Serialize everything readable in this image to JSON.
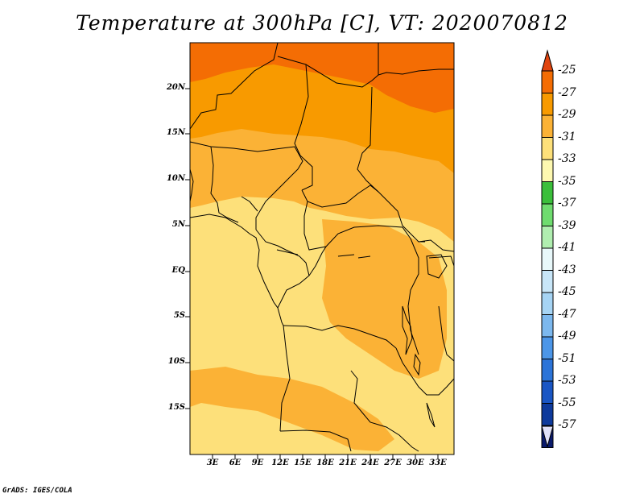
{
  "title": "Temperature at 300hPa [C], VT: 2020070812",
  "credit": "GrADS: IGES/COLA",
  "lat_labels": [
    "20N",
    "15N",
    "10N",
    "5N",
    "EQ",
    "5S",
    "10S",
    "15S"
  ],
  "lon_labels": [
    "3E",
    "6E",
    "9E",
    "12E",
    "15E",
    "18E",
    "21E",
    "24E",
    "27E",
    "30E",
    "33E"
  ],
  "colorbar": {
    "labels": [
      "-25",
      "-27",
      "-29",
      "-31",
      "-33",
      "-35",
      "-37",
      "-39",
      "-41",
      "-43",
      "-45",
      "-47",
      "-49",
      "-51",
      "-53",
      "-55",
      "-57"
    ],
    "colors": [
      "#e0440e",
      "#f46d04",
      "#f89a00",
      "#fbb236",
      "#fde07a",
      "#fdf8b0",
      "#3bbf3b",
      "#6fdc6f",
      "#b0eeb0",
      "#e8f8fa",
      "#c8e6f8",
      "#a6d4f4",
      "#7cb8ee",
      "#4c96e8",
      "#2c74d8",
      "#1a56c4",
      "#0e3a9c",
      "#0a1a6c",
      "#e0e0f8"
    ]
  },
  "legend_mapping": {
    "orange_red": "-25 to -27",
    "orange": "-27 to -29",
    "light_orange": "-29 to -31",
    "yellow": "-31 to -33"
  }
}
